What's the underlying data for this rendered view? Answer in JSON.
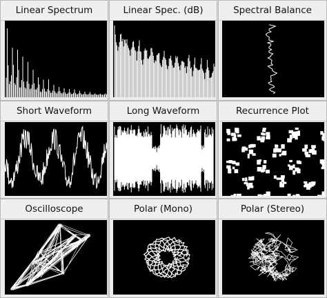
{
  "panels": [
    {
      "title": "Linear Spectrum"
    },
    {
      "title": "Linear Spec. (dB)"
    },
    {
      "title": "Spectral Balance"
    },
    {
      "title": "Short Waveform"
    },
    {
      "title": "Long Waveform"
    },
    {
      "title": "Recurrence Plot"
    },
    {
      "title": "Oscilloscope"
    },
    {
      "title": "Polar (Mono)"
    },
    {
      "title": "Polar (Stereo)"
    }
  ],
  "colors": {
    "plot_bg": "#000000",
    "trace": "#ffffff",
    "panel_bg": "#ececec"
  }
}
